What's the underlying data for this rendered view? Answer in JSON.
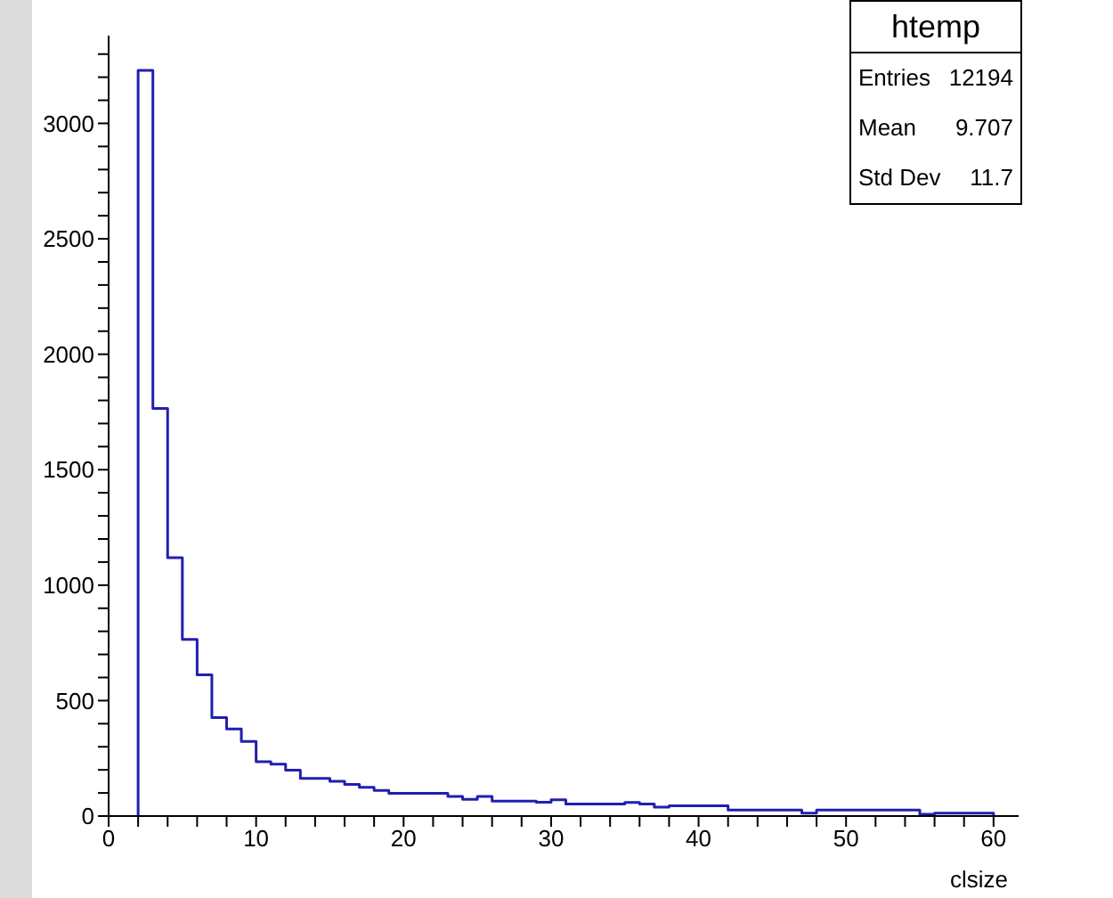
{
  "chart_data": {
    "type": "histogram",
    "title": "htemp",
    "xlabel": "clsize",
    "annotations": [
      "Entries",
      "12194",
      "Mean",
      "9.707",
      "Std Dev",
      "11.7"
    ],
    "bins": [
      2,
      3,
      4,
      5,
      6,
      7,
      8,
      9,
      10,
      11,
      12,
      13,
      14,
      15,
      16,
      17,
      18,
      19,
      20,
      21,
      22,
      23,
      24,
      25,
      26,
      27,
      28,
      29,
      30,
      31,
      32,
      33,
      34,
      35,
      36,
      37,
      38,
      39,
      40,
      41,
      42,
      43,
      44,
      45,
      46,
      47,
      48,
      49,
      50,
      51,
      52,
      53,
      54,
      55,
      56,
      57,
      58,
      59,
      60
    ],
    "values": [
      3230,
      1765,
      1119,
      765,
      612,
      426,
      377,
      323,
      235,
      225,
      199,
      163,
      163,
      150,
      137,
      124,
      111,
      98,
      98,
      98,
      98,
      85,
      72,
      85,
      65,
      65,
      65,
      60,
      70,
      52,
      52,
      52,
      52,
      59,
      52,
      39,
      44,
      44,
      44,
      44,
      26,
      26,
      26,
      26,
      26,
      13,
      26,
      26,
      26,
      26,
      26,
      26,
      26,
      8,
      13,
      13,
      13,
      13
    ],
    "color": "#2020b0",
    "xlim": [
      0,
      61.7
    ],
    "xticks": [
      0,
      {
        "value": 2,
        "label": null
      },
      {
        "value": 4,
        "label": null
      },
      {
        "value": 6,
        "label": null
      },
      {
        "value": 8,
        "label": null
      },
      10,
      {
        "value": 12,
        "label": null
      },
      {
        "value": 14,
        "label": null
      },
      {
        "value": 16,
        "label": null
      },
      {
        "value": 18,
        "label": null
      },
      20,
      {
        "value": 22,
        "label": null
      },
      {
        "value": 24,
        "label": null
      },
      {
        "value": 26,
        "label": null
      },
      {
        "value": 28,
        "label": null
      },
      30,
      {
        "value": 32,
        "label": null
      },
      {
        "value": 34,
        "label": null
      },
      {
        "value": 36,
        "label": null
      },
      {
        "value": 38,
        "label": null
      },
      40,
      {
        "value": 42,
        "label": null
      },
      {
        "value": 44,
        "label": null
      },
      {
        "value": 46,
        "label": null
      },
      {
        "value": 48,
        "label": null
      },
      50,
      {
        "value": 52,
        "label": null
      },
      {
        "value": 54,
        "label": null
      },
      {
        "value": 56,
        "label": null
      },
      {
        "value": 58,
        "label": null
      },
      60
    ],
    "ylim": [
      0,
      3380
    ],
    "yticks": [
      0,
      {
        "value": 100,
        "label": null
      },
      {
        "value": 200,
        "label": null
      },
      {
        "value": 300,
        "label": null
      },
      {
        "value": 400,
        "label": null
      },
      500,
      {
        "value": 600,
        "label": null
      },
      {
        "value": 700,
        "label": null
      },
      {
        "value": 800,
        "label": null
      },
      {
        "value": 900,
        "label": null
      },
      1000,
      {
        "value": 1100,
        "label": null
      },
      {
        "value": 1200,
        "label": null
      },
      {
        "value": 1300,
        "label": null
      },
      {
        "value": 1400,
        "label": null
      },
      1500,
      {
        "value": 1600,
        "label": null
      },
      {
        "value": 1700,
        "label": null
      },
      {
        "value": 1800,
        "label": null
      },
      {
        "value": 1900,
        "label": null
      },
      2000,
      {
        "value": 2100,
        "label": null
      },
      {
        "value": 2200,
        "label": null
      },
      {
        "value": 2300,
        "label": null
      },
      {
        "value": 2400,
        "label": null
      },
      2500,
      {
        "value": 2600,
        "label": null
      },
      {
        "value": 2700,
        "label": null
      },
      {
        "value": 2800,
        "label": null
      },
      {
        "value": 2900,
        "label": null
      },
      3000,
      {
        "value": 3100,
        "label": null
      },
      {
        "value": 3200,
        "label": null
      },
      {
        "value": 3300,
        "label": null
      }
    ],
    "grid": false
  }
}
